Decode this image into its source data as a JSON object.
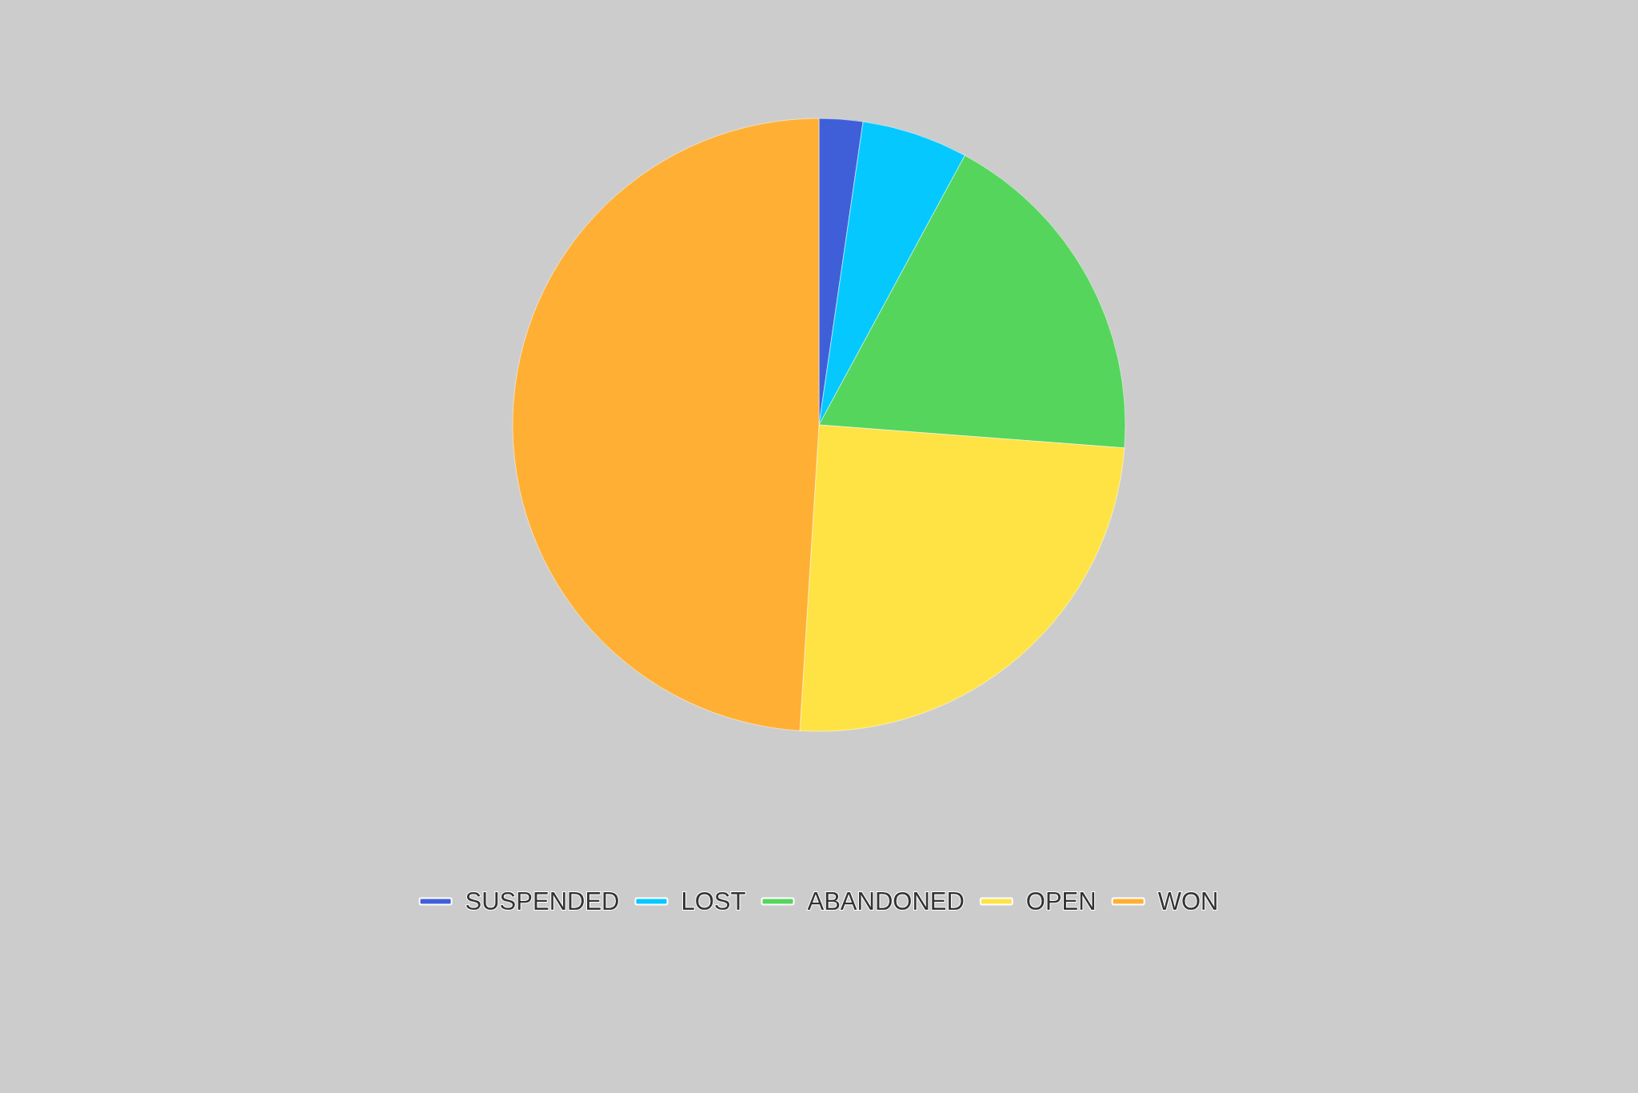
{
  "chart_data": {
    "type": "pie",
    "categories": [
      "SUSPENDED",
      "LOST",
      "ABANDONED",
      "OPEN",
      "WON"
    ],
    "values": [
      2.3,
      5.6,
      18.3,
      24.8,
      49.0
    ],
    "colors": [
      "#3f5fd9",
      "#05c8ff",
      "#55d55c",
      "#ffe345",
      "#ffaf33"
    ],
    "legend": "bottom"
  }
}
